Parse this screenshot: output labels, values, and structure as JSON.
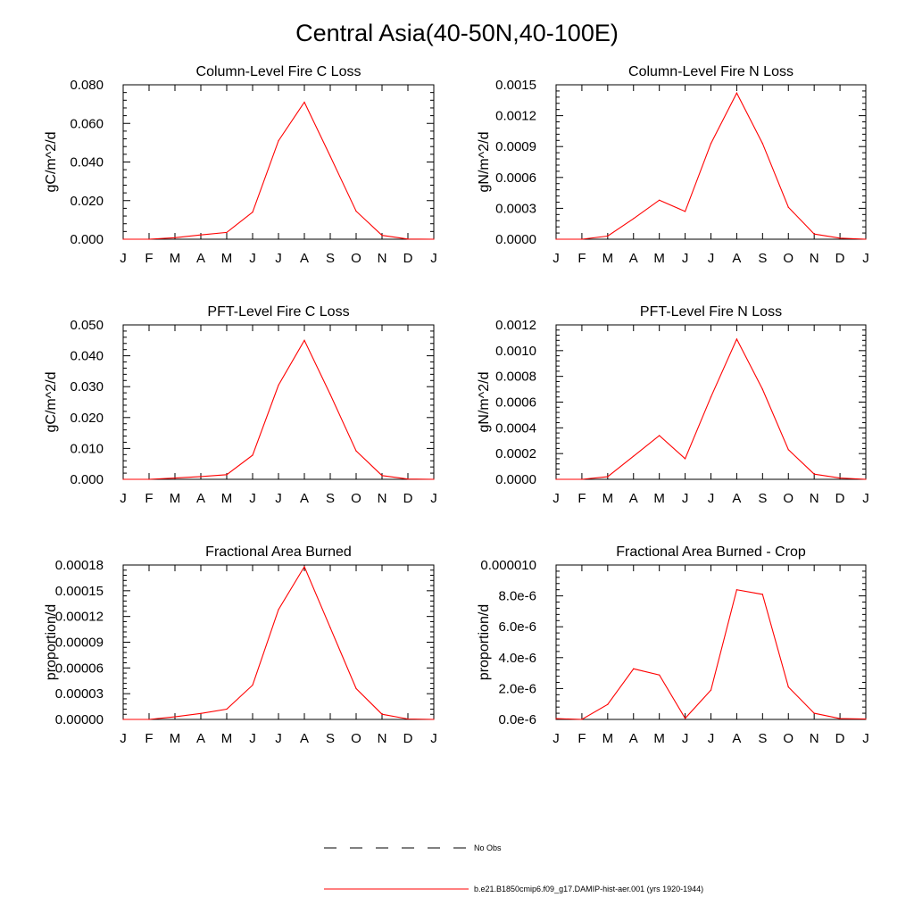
{
  "page": {
    "title": "Central Asia(40-50N,40-100E)"
  },
  "legend": {
    "items": [
      {
        "label": "No Obs",
        "style": "dashed",
        "color": "#000000"
      },
      {
        "label": "b.e21.B1850cmip6.f09_g17.DAMIP-hist-aer.001 (yrs 1920-1944)",
        "style": "solid",
        "color": "#ff0000"
      }
    ]
  },
  "chart_data": [
    {
      "type": "line",
      "title": "Column-Level Fire C Loss",
      "ylabel": "gC/m^2/d",
      "categories": [
        "J",
        "F",
        "M",
        "A",
        "M",
        "J",
        "J",
        "A",
        "S",
        "O",
        "N",
        "D",
        "J"
      ],
      "ylim": [
        0,
        0.08
      ],
      "yticks": [
        "0.000",
        "0.020",
        "0.040",
        "0.060",
        "0.080"
      ],
      "series": [
        {
          "color": "#ff0000",
          "values": [
            0.0,
            0.0,
            0.0008,
            0.0022,
            0.0035,
            0.014,
            0.051,
            0.071,
            0.043,
            0.0145,
            0.002,
            0.0001,
            0.0
          ]
        }
      ]
    },
    {
      "type": "line",
      "title": "Column-Level Fire N Loss",
      "ylabel": "gN/m^2/d",
      "categories": [
        "J",
        "F",
        "M",
        "A",
        "M",
        "J",
        "J",
        "A",
        "S",
        "O",
        "N",
        "D",
        "J"
      ],
      "ylim": [
        0,
        0.0015
      ],
      "yticks": [
        "0.0000",
        "0.0003",
        "0.0006",
        "0.0009",
        "0.0012",
        "0.0015"
      ],
      "series": [
        {
          "color": "#ff0000",
          "values": [
            0.0,
            0.0,
            3e-05,
            0.0002,
            0.00038,
            0.00027,
            0.00093,
            0.00142,
            0.00093,
            0.00031,
            5e-05,
            1e-05,
            0.0
          ]
        }
      ]
    },
    {
      "type": "line",
      "title": "PFT-Level Fire C Loss",
      "ylabel": "gC/m^2/d",
      "categories": [
        "J",
        "F",
        "M",
        "A",
        "M",
        "J",
        "J",
        "A",
        "S",
        "O",
        "N",
        "D",
        "J"
      ],
      "ylim": [
        0,
        0.05
      ],
      "yticks": [
        "0.000",
        "0.010",
        "0.020",
        "0.030",
        "0.040",
        "0.050"
      ],
      "series": [
        {
          "color": "#ff0000",
          "values": [
            0.0,
            0.0,
            0.0004,
            0.0009,
            0.0015,
            0.0078,
            0.0305,
            0.045,
            0.0275,
            0.0092,
            0.0012,
            0.0001,
            0.0
          ]
        }
      ]
    },
    {
      "type": "line",
      "title": "PFT-Level Fire N Loss",
      "ylabel": "gN/m^2/d",
      "categories": [
        "J",
        "F",
        "M",
        "A",
        "M",
        "J",
        "J",
        "A",
        "S",
        "O",
        "N",
        "D",
        "J"
      ],
      "ylim": [
        0,
        0.0012
      ],
      "yticks": [
        "0.0000",
        "0.0002",
        "0.0004",
        "0.0006",
        "0.0008",
        "0.0010",
        "0.0012"
      ],
      "series": [
        {
          "color": "#ff0000",
          "values": [
            0.0,
            0.0,
            2e-05,
            0.00018,
            0.00034,
            0.00016,
            0.00064,
            0.00109,
            0.0007,
            0.00023,
            4e-05,
            1e-05,
            0.0
          ]
        }
      ]
    },
    {
      "type": "line",
      "title": "Fractional Area Burned",
      "ylabel": "proportion/d",
      "categories": [
        "J",
        "F",
        "M",
        "A",
        "M",
        "J",
        "J",
        "A",
        "S",
        "O",
        "N",
        "D",
        "J"
      ],
      "ylim": [
        0,
        0.00018
      ],
      "yticks": [
        "0.00000",
        "0.00003",
        "0.00006",
        "0.00009",
        "0.00012",
        "0.00015",
        "0.00018"
      ],
      "series": [
        {
          "color": "#ff0000",
          "values": [
            0.0,
            0.0,
            3e-06,
            7e-06,
            1.2e-05,
            4e-05,
            0.000128,
            0.000178,
            0.000107,
            3.6e-05,
            6e-06,
            5e-07,
            0.0
          ]
        }
      ]
    },
    {
      "type": "line",
      "title": "Fractional Area Burned - Crop",
      "ylabel": "proportion/d",
      "categories": [
        "J",
        "F",
        "M",
        "A",
        "M",
        "J",
        "J",
        "A",
        "S",
        "O",
        "N",
        "D",
        "J"
      ],
      "ylim": [
        0,
        1e-05
      ],
      "yticks": [
        "0.0e-6",
        "2.0e-6",
        "4.0e-6",
        "6.0e-6",
        "8.0e-6",
        "0.000010"
      ],
      "series": [
        {
          "color": "#ff0000",
          "values": [
            5e-08,
            0.0,
            9.7e-07,
            3.28e-06,
            2.88e-06,
            7e-08,
            1.9e-06,
            8.4e-06,
            8.1e-06,
            2.1e-06,
            4e-07,
            5e-08,
            3e-08
          ]
        }
      ]
    }
  ]
}
